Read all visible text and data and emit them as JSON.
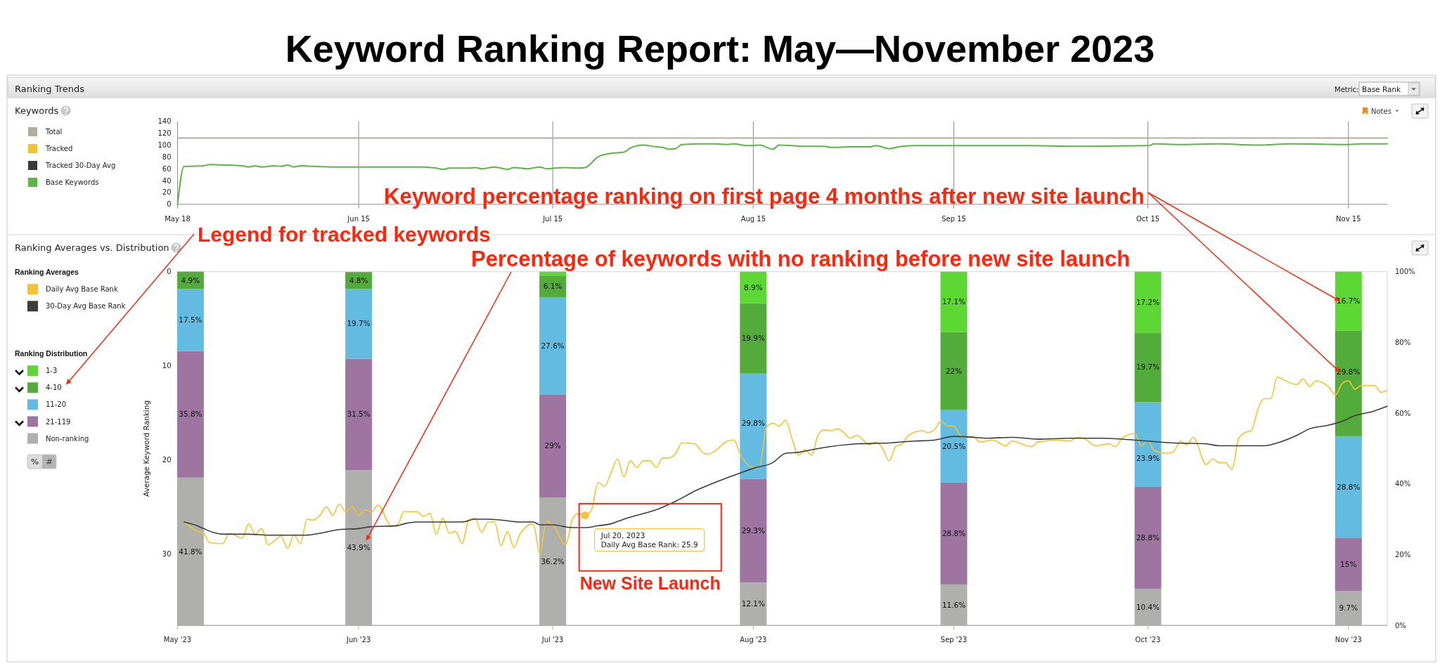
{
  "chart_data": [
    {
      "type": "line",
      "title": "Keyword Ranking Report: May—November 2023",
      "annotations": [
        "Ranking Trends",
        "Keywords",
        "Metric:",
        "Base Rank",
        "Notes"
      ],
      "xlim": [
        "2023-05-18",
        "2023-11-21"
      ],
      "xticks": [
        {
          "value": "2023-05-18",
          "label": "May 18"
        },
        {
          "value": "2023-06-15",
          "label": "Jun 15"
        },
        {
          "value": "2023-07-15",
          "label": "Jul 15"
        },
        {
          "value": "2023-08-15",
          "label": "Aug 15"
        },
        {
          "value": "2023-09-15",
          "label": "Sep 15"
        },
        {
          "value": "2023-10-15",
          "label": "Oct 15"
        },
        {
          "value": "2023-11-15",
          "label": "Nov 15"
        }
      ],
      "ylim": [
        0,
        140
      ],
      "yticks": [
        0,
        20,
        40,
        60,
        80,
        100,
        120,
        140
      ],
      "grid": "x",
      "legend": "left",
      "series": [
        {
          "name": "Total",
          "color": "#b3ad9c",
          "x": [
            "2023-05-18",
            "2023-11-21"
          ],
          "values": [
            112,
            112
          ]
        },
        {
          "name": "Tracked",
          "color": "#f5c231"
        },
        {
          "name": "Tracked 30-Day Avg",
          "color": "#3a3a3a"
        },
        {
          "name": "Base Keywords",
          "color": "#5bb744",
          "x": [
            "2023-05-18",
            "2023-05-19",
            "2023-05-22",
            "2023-05-23",
            "2023-05-26",
            "2023-05-28",
            "2023-05-29",
            "2023-05-30",
            "2023-05-31",
            "2023-06-02",
            "2023-06-03",
            "2023-06-04",
            "2023-06-05",
            "2023-06-06",
            "2023-06-08",
            "2023-06-11",
            "2023-06-13",
            "2023-06-15",
            "2023-06-18",
            "2023-06-22",
            "2023-06-25",
            "2023-06-27",
            "2023-06-28",
            "2023-06-29",
            "2023-07-02",
            "2023-07-03",
            "2023-07-04",
            "2023-07-06",
            "2023-07-08",
            "2023-07-09",
            "2023-07-11",
            "2023-07-13",
            "2023-07-14",
            "2023-07-17",
            "2023-07-19",
            "2023-07-20",
            "2023-07-22",
            "2023-07-24",
            "2023-07-26",
            "2023-07-27",
            "2023-07-29",
            "2023-07-31",
            "2023-08-01",
            "2023-08-02",
            "2023-08-03",
            "2023-08-04",
            "2023-08-07",
            "2023-08-09",
            "2023-08-11",
            "2023-08-12",
            "2023-08-14",
            "2023-08-16",
            "2023-08-18",
            "2023-08-19",
            "2023-08-21",
            "2023-08-23",
            "2023-08-26",
            "2023-08-27",
            "2023-08-30",
            "2023-09-02",
            "2023-09-03",
            "2023-09-05",
            "2023-09-07",
            "2023-09-09",
            "2023-09-15",
            "2023-09-20",
            "2023-09-26",
            "2023-10-04",
            "2023-10-15",
            "2023-10-16",
            "2023-10-20",
            "2023-10-26",
            "2023-11-01",
            "2023-11-06",
            "2023-11-15",
            "2023-11-17",
            "2023-11-21"
          ],
          "values": [
            0,
            64,
            65,
            67,
            66,
            65,
            63,
            65,
            63,
            65,
            64,
            66,
            63,
            65,
            64,
            63,
            63,
            63,
            63,
            63,
            63,
            61,
            59,
            61,
            61,
            62,
            60,
            63,
            59,
            62,
            60,
            63,
            60,
            62,
            61,
            62,
            80,
            86,
            88,
            95,
            100,
            97,
            96,
            93,
            94,
            101,
            102,
            102,
            101,
            102,
            99,
            100,
            93,
            100,
            99,
            98,
            98,
            96,
            97,
            97,
            99,
            94,
            98,
            99,
            99,
            99,
            99,
            98,
            99,
            102,
            101,
            102,
            100,
            102,
            101,
            102,
            102
          ]
        }
      ]
    },
    {
      "type": "bar",
      "title": "Ranking Averages vs. Distribution",
      "ylabel": "Average Keyword Ranking",
      "legend_title": "Ranking Averages",
      "annotations": [
        "Ranking Distribution",
        "%",
        "#",
        "Legend for tracked keywords",
        "Keyword percentage ranking on first page 4 months after new site launch",
        "Percentage of keywords with no ranking before new site launch",
        {
          "text": "Jul 20, 2023\nDaily Avg Base Rank: 25.9",
          "x": "2023-07-20",
          "y": 25.9
        },
        "New Site Launch"
      ],
      "x": [
        "2023-05-20",
        "2023-06-15",
        "2023-07-15",
        "2023-08-15",
        "2023-09-15",
        "2023-10-15",
        "2023-11-15"
      ],
      "xlim": [
        "2023-05-18",
        "2023-11-21"
      ],
      "xticks": [
        {
          "value": "2023-05-18",
          "label": "May '23"
        },
        {
          "value": "2023-06-15",
          "label": "Jun '23"
        },
        {
          "value": "2023-07-15",
          "label": "Jul '23"
        },
        {
          "value": "2023-08-15",
          "label": "Aug '23"
        },
        {
          "value": "2023-09-15",
          "label": "Sep '23"
        },
        {
          "value": "2023-10-15",
          "label": "Oct '23"
        },
        {
          "value": "2023-11-15",
          "label": "Nov '23"
        }
      ],
      "ylim": [
        37.6,
        0
      ],
      "yticks": [
        0,
        10,
        20,
        30
      ],
      "y2lim": [
        0,
        100
      ],
      "y2ticks": [
        {
          "value": 0,
          "label": "0%"
        },
        {
          "value": 20,
          "label": "20%"
        },
        {
          "value": 40,
          "label": "40%"
        },
        {
          "value": 60,
          "label": "60%"
        },
        {
          "value": 80,
          "label": "80%"
        },
        {
          "value": 100,
          "label": "100%"
        }
      ],
      "stacked": true,
      "legend": "left",
      "series": [
        {
          "name": "Non-ranking",
          "color": "#afafad",
          "axis": "y2",
          "values": [
            41.8,
            43.9,
            36.2,
            12.1,
            11.6,
            10.4,
            9.7
          ],
          "value_labels": [
            "41.8%",
            "43.9%",
            "36.2%",
            "12.1%",
            "11.6%",
            "10.4%",
            "9.7%"
          ]
        },
        {
          "name": "21-119",
          "color": "#9e74a1",
          "axis": "y2",
          "values": [
            35.8,
            31.5,
            29,
            29.3,
            28.8,
            28.8,
            15
          ],
          "value_labels": [
            "35.8%",
            "31.5%",
            "29%",
            "29.3%",
            "28.8%",
            "28.8%",
            "15%"
          ]
        },
        {
          "name": "11-20",
          "color": "#64bbe1",
          "axis": "y2",
          "values": [
            17.5,
            19.7,
            27.6,
            29.8,
            20.5,
            23.9,
            28.8
          ],
          "value_labels": [
            "17.5%",
            "19.7%",
            "27.6%",
            "29.8%",
            "20.5%",
            "23.9%",
            "28.8%"
          ]
        },
        {
          "name": "4-10",
          "color": "#53ab3c",
          "axis": "y2",
          "values": [
            4.9,
            4.8,
            6.1,
            19.9,
            22,
            19.7,
            29.8
          ],
          "value_labels": [
            "4.9%",
            "4.8%",
            "6.1%",
            "19.9%",
            "22%",
            "19.7%",
            "29.8%"
          ]
        },
        {
          "name": "1-3",
          "color": "#5dd733",
          "axis": "y2",
          "values": [
            0,
            0,
            1.1,
            8.9,
            17.1,
            17.2,
            16.7
          ],
          "value_labels": [
            null,
            null,
            null,
            "8.9%",
            "17.1%",
            "17.2%",
            "16.7%"
          ]
        },
        {
          "name": "Daily Avg Base Rank",
          "type": "line",
          "color": "#f5c231",
          "x": [
            "2023-05-19",
            "2023-05-21",
            "2023-05-22",
            "2023-05-23",
            "2023-05-25",
            "2023-05-26",
            "2023-05-28",
            "2023-05-29",
            "2023-05-30",
            "2023-05-31",
            "2023-06-01",
            "2023-06-02",
            "2023-06-03",
            "2023-06-04",
            "2023-06-05",
            "2023-06-06",
            "2023-06-07",
            "2023-06-08",
            "2023-06-09",
            "2023-06-10",
            "2023-06-11",
            "2023-06-12",
            "2023-06-13",
            "2023-06-14",
            "2023-06-15",
            "2023-06-16",
            "2023-06-17",
            "2023-06-18",
            "2023-06-20",
            "2023-06-21",
            "2023-06-22",
            "2023-06-24",
            "2023-06-25",
            "2023-06-26",
            "2023-06-27",
            "2023-06-28",
            "2023-06-29",
            "2023-06-30",
            "2023-07-01",
            "2023-07-02",
            "2023-07-03",
            "2023-07-04",
            "2023-07-05",
            "2023-07-06",
            "2023-07-07",
            "2023-07-08",
            "2023-07-09",
            "2023-07-10",
            "2023-07-12",
            "2023-07-13",
            "2023-07-14",
            "2023-07-15",
            "2023-07-17",
            "2023-07-18",
            "2023-07-19",
            "2023-07-20",
            "2023-07-21",
            "2023-07-22",
            "2023-07-23",
            "2023-07-24",
            "2023-07-25",
            "2023-07-26",
            "2023-07-27",
            "2023-07-28",
            "2023-07-29",
            "2023-07-30",
            "2023-07-31",
            "2023-08-01",
            "2023-08-02",
            "2023-08-03",
            "2023-08-04",
            "2023-08-06",
            "2023-08-07",
            "2023-08-08",
            "2023-08-09",
            "2023-08-11",
            "2023-08-12",
            "2023-08-13",
            "2023-08-15",
            "2023-08-16",
            "2023-08-17",
            "2023-08-18",
            "2023-08-19",
            "2023-08-20",
            "2023-08-21",
            "2023-08-22",
            "2023-08-23",
            "2023-08-24",
            "2023-08-25",
            "2023-08-26",
            "2023-08-27",
            "2023-08-28",
            "2023-08-29",
            "2023-08-30",
            "2023-08-31",
            "2023-09-02",
            "2023-09-03",
            "2023-09-04",
            "2023-09-05",
            "2023-09-06",
            "2023-09-07",
            "2023-09-08",
            "2023-09-10",
            "2023-09-11",
            "2023-09-12",
            "2023-09-13",
            "2023-09-14",
            "2023-09-15",
            "2023-09-16",
            "2023-09-17",
            "2023-09-18",
            "2023-09-19",
            "2023-09-21",
            "2023-09-23",
            "2023-09-24",
            "2023-09-27",
            "2023-09-28",
            "2023-10-01",
            "2023-10-03",
            "2023-10-04",
            "2023-10-05",
            "2023-10-07",
            "2023-10-09",
            "2023-10-10",
            "2023-10-11",
            "2023-10-13",
            "2023-10-14",
            "2023-10-15",
            "2023-10-16",
            "2023-10-18",
            "2023-10-19",
            "2023-10-20",
            "2023-10-21",
            "2023-10-22",
            "2023-10-24",
            "2023-10-25",
            "2023-10-26",
            "2023-10-27",
            "2023-10-28",
            "2023-10-29",
            "2023-10-30",
            "2023-10-31",
            "2023-11-01",
            "2023-11-02",
            "2023-11-03",
            "2023-11-04",
            "2023-11-05",
            "2023-11-07",
            "2023-11-08",
            "2023-11-09",
            "2023-11-10",
            "2023-11-12",
            "2023-11-13",
            "2023-11-14",
            "2023-11-15",
            "2023-11-16",
            "2023-11-17",
            "2023-11-19",
            "2023-11-20",
            "2023-11-21"
          ],
          "values": [
            26.6,
            27.6,
            27.8,
            28.8,
            28.9,
            27.8,
            28.3,
            26.8,
            27.9,
            27.3,
            29.0,
            28.6,
            28.1,
            29.4,
            28.0,
            28.9,
            26.3,
            26.4,
            25.9,
            25.0,
            25.9,
            24.7,
            25.5,
            24.9,
            25.9,
            25.3,
            25.5,
            24.8,
            27.0,
            26.9,
            25.5,
            25.5,
            26.0,
            25.7,
            27.9,
            26.2,
            27.8,
            27.6,
            28.9,
            26.4,
            26.2,
            27.7,
            26.6,
            26.6,
            29.1,
            27.6,
            29.3,
            27.8,
            26.8,
            30.0,
            26.5,
            26.9,
            29.0,
            26.4,
            25.7,
            25.9,
            25.3,
            22.4,
            22.8,
            21.4,
            19.9,
            21.8,
            20.1,
            20.8,
            20.1,
            20.1,
            20.8,
            19.8,
            19.8,
            19.3,
            18.2,
            18.3,
            19.1,
            19.4,
            19.1,
            18.0,
            17.9,
            19.4,
            20.8,
            20.7,
            16.6,
            16.1,
            16.4,
            15.8,
            17.8,
            19.5,
            18.9,
            19.5,
            17.4,
            16.8,
            16.9,
            16.7,
            17.1,
            17.7,
            17.4,
            18.4,
            18.1,
            18.8,
            20.1,
            18.6,
            18.3,
            17.4,
            16.9,
            17.1,
            16.8,
            15.9,
            16.4,
            16.4,
            17.4,
            17.6,
            17.5,
            18.1,
            17.9,
            18.5,
            18.0,
            18.6,
            18.1,
            17.9,
            18.0,
            17.6,
            17.7,
            18.5,
            18.3,
            18.6,
            17.7,
            17.2,
            18.5,
            18.0,
            19.0,
            19.3,
            19.1,
            18.0,
            18.4,
            17.6,
            20.5,
            19.9,
            20.3,
            20.3,
            21.0,
            17.8,
            17.1,
            16.9,
            14.6,
            13.5,
            13.5,
            11.2,
            11.5,
            12.0,
            11.4,
            12.2,
            11.6,
            12.3,
            13.1,
            11.9,
            11.6,
            12.5,
            12.1,
            12.1,
            12.8,
            12.6
          ]
        },
        {
          "name": "30-Day Avg Base Rank",
          "type": "line",
          "color": "#3c3c3c",
          "x": [
            "2023-05-19",
            "2023-05-21",
            "2023-05-22",
            "2023-05-24",
            "2023-05-25",
            "2023-05-29",
            "2023-06-01",
            "2023-06-04",
            "2023-06-07",
            "2023-06-09",
            "2023-06-12",
            "2023-06-15",
            "2023-06-17",
            "2023-06-21",
            "2023-06-22",
            "2023-06-24",
            "2023-06-27",
            "2023-07-01",
            "2023-07-03",
            "2023-07-05",
            "2023-07-07",
            "2023-07-10",
            "2023-07-12",
            "2023-07-13",
            "2023-07-15",
            "2023-07-18",
            "2023-07-20",
            "2023-07-22",
            "2023-07-24",
            "2023-07-26",
            "2023-07-28",
            "2023-07-31",
            "2023-08-03",
            "2023-08-06",
            "2023-08-11",
            "2023-08-13",
            "2023-08-15",
            "2023-08-18",
            "2023-08-20",
            "2023-08-22",
            "2023-08-25",
            "2023-08-31",
            "2023-09-05",
            "2023-09-09",
            "2023-09-12",
            "2023-09-15",
            "2023-09-18",
            "2023-09-20",
            "2023-09-24",
            "2023-09-28",
            "2023-10-03",
            "2023-10-08",
            "2023-10-13",
            "2023-10-19",
            "2023-10-24",
            "2023-10-26",
            "2023-10-31",
            "2023-11-02",
            "2023-11-04",
            "2023-11-07",
            "2023-11-09",
            "2023-11-12",
            "2023-11-14",
            "2023-11-16",
            "2023-11-19",
            "2023-11-21"
          ],
          "values": [
            26.6,
            27.0,
            27.3,
            27.8,
            27.9,
            27.9,
            28.0,
            28.0,
            28.0,
            27.8,
            27.4,
            27.3,
            27.1,
            27.0,
            26.8,
            26.6,
            26.6,
            26.6,
            26.3,
            26.3,
            26.4,
            26.6,
            26.6,
            26.9,
            26.9,
            27.2,
            27.2,
            27.0,
            26.8,
            26.3,
            25.9,
            25.3,
            24.4,
            23.3,
            21.9,
            21.4,
            20.9,
            20.3,
            19.3,
            19.2,
            18.8,
            18.3,
            18.2,
            18.0,
            17.9,
            17.5,
            17.6,
            17.7,
            17.6,
            17.8,
            17.7,
            17.7,
            17.9,
            18.2,
            18.3,
            18.5,
            18.5,
            18.5,
            18.2,
            17.4,
            16.7,
            16.3,
            15.9,
            15.3,
            14.8,
            14.3
          ]
        }
      ]
    }
  ]
}
